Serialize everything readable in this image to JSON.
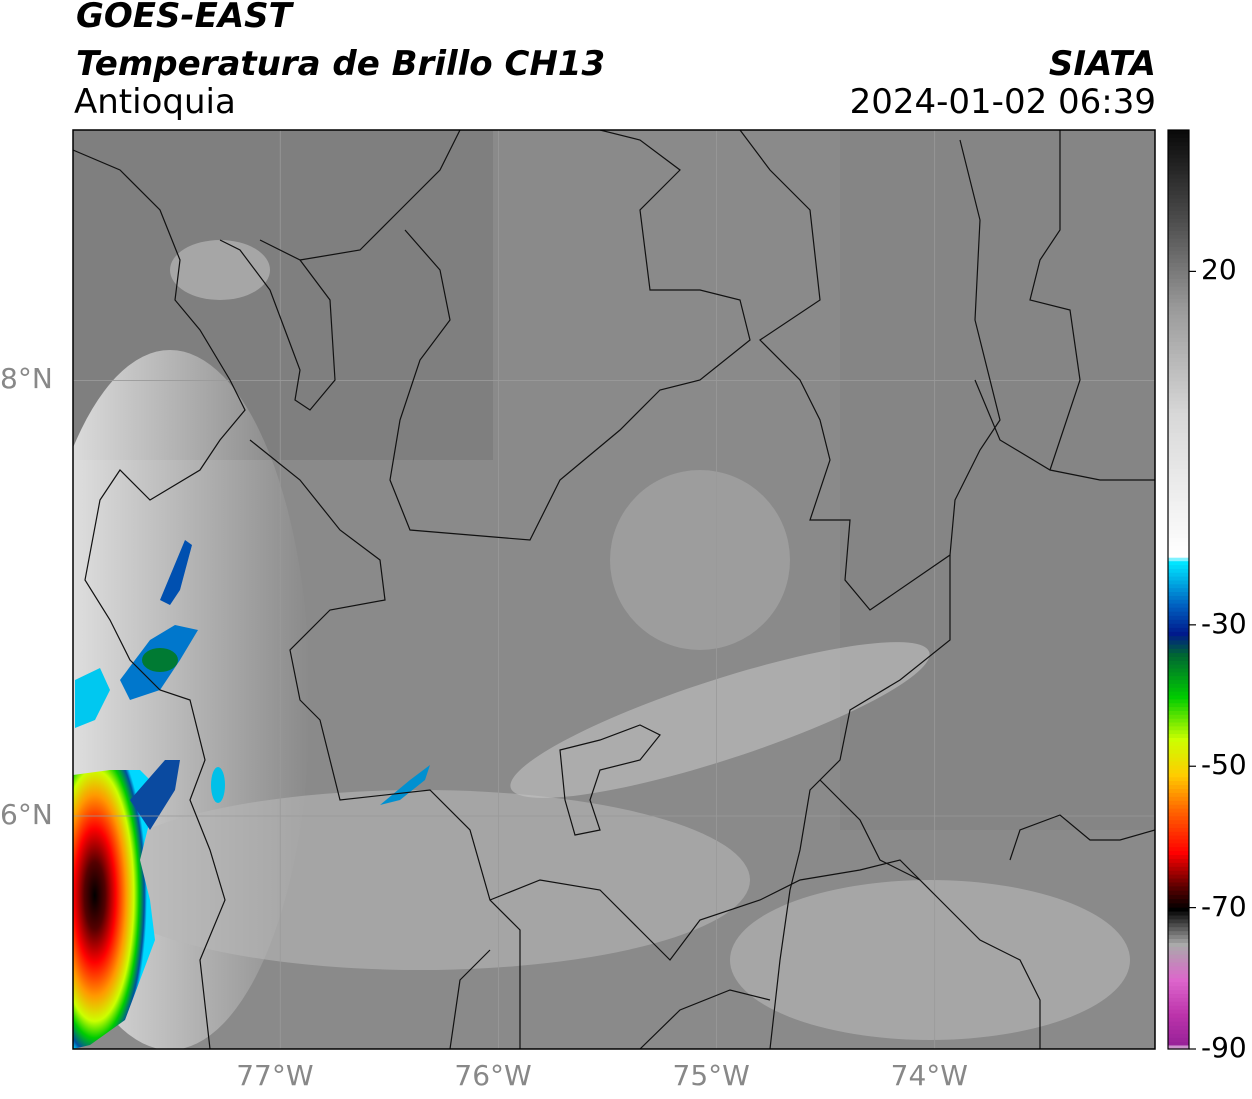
{
  "header": {
    "satellite": "GOES-EAST",
    "product": "Temperatura de Brillo CH13",
    "region": "Antioquia",
    "organization": "SIATA",
    "timestamp": "2024-01-02 06:39"
  },
  "map": {
    "lon_range": [
      -77.95,
      -72.99
    ],
    "lat_range": [
      4.93,
      9.15
    ],
    "lon_ticks": [
      {
        "value": -77,
        "label": "77°W"
      },
      {
        "value": -76,
        "label": "76°W"
      },
      {
        "value": -75,
        "label": "75°W"
      },
      {
        "value": -74,
        "label": "74°W"
      }
    ],
    "lat_ticks": [
      {
        "value": 8,
        "label": "8°N"
      },
      {
        "value": 6,
        "label": "6°N"
      }
    ],
    "gridlines": true,
    "land_tone": "#8c8c8c"
  },
  "colorbar": {
    "range": [
      -90,
      40
    ],
    "ticks": [
      {
        "value": 20,
        "label": "20"
      },
      {
        "value": -30,
        "label": "-30"
      },
      {
        "value": -50,
        "label": "-50"
      },
      {
        "value": -70,
        "label": "-70"
      },
      {
        "value": -90,
        "label": "-90"
      }
    ],
    "stops": [
      {
        "value": 40,
        "color": "#0a0a0a"
      },
      {
        "value": 28,
        "color": "#4a4a4a"
      },
      {
        "value": 15,
        "color": "#9a9a9a"
      },
      {
        "value": 0,
        "color": "#d8d8d8"
      },
      {
        "value": -20,
        "color": "#ffffff"
      },
      {
        "value": -21,
        "color": "#00e5ff"
      },
      {
        "value": -27,
        "color": "#0060c0"
      },
      {
        "value": -31,
        "color": "#001a8c"
      },
      {
        "value": -34,
        "color": "#006633"
      },
      {
        "value": -40,
        "color": "#00cc00"
      },
      {
        "value": -46,
        "color": "#ccff00"
      },
      {
        "value": -51,
        "color": "#ffcc00"
      },
      {
        "value": -56,
        "color": "#ff6600"
      },
      {
        "value": -62,
        "color": "#ff0000"
      },
      {
        "value": -67,
        "color": "#550000"
      },
      {
        "value": -70,
        "color": "#000000"
      },
      {
        "value": -75,
        "color": "#aaaaaa"
      },
      {
        "value": -80,
        "color": "#dd66cc"
      },
      {
        "value": -85,
        "color": "#bb33aa"
      },
      {
        "value": -89,
        "color": "#992299"
      },
      {
        "value": -90,
        "color": "#ffffff"
      }
    ]
  }
}
